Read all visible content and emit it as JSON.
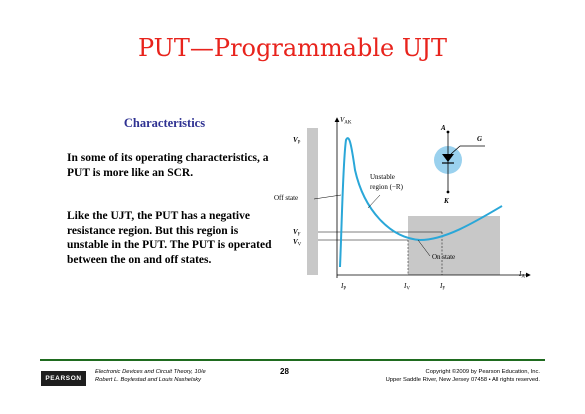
{
  "slide": {
    "title": "PUT—Programmable UJT",
    "subheading": "Characteristics",
    "paragraphs": [
      "In some of its operating characteristics, a PUT is more like an SCR.",
      "Like the UJT, the PUT has a negative resistance region. But this region is unstable in the PUT. The PUT is operated between the on and off states."
    ]
  },
  "figure": {
    "labels": {
      "vak": "V",
      "vak_sub": "AK",
      "vp": "V",
      "vp_sub": "P",
      "vf": "V",
      "vf_sub": "F",
      "vv": "V",
      "vv_sub": "V",
      "ip": "I",
      "ip_sub": "P",
      "iv": "I",
      "iv_sub": "V",
      "if": "I",
      "if_sub": "F",
      "ia": "I",
      "ia_sub": "A",
      "off_state": "Off state",
      "unstable_line1": "Unstable",
      "unstable_line2": "region (−R)",
      "on_state": "On state",
      "anode": "A",
      "gate": "G",
      "cathode": "K"
    },
    "colors": {
      "curve": "#2aa7d8",
      "shade": "#c8c8c8",
      "symbol_circle": "#9ad1ee"
    }
  },
  "footer": {
    "logo": "PEARSON",
    "book_line1": "Electronic Devices and Circuit Theory, 10/e",
    "book_line2": "Robert L. Boylestad and Louis Nashelsky",
    "page": "28",
    "copyright_line1": "Copyright ©2009 by Pearson Education, Inc.",
    "copyright_line2": "Upper Saddle River, New Jersey 07458 • All rights reserved."
  }
}
